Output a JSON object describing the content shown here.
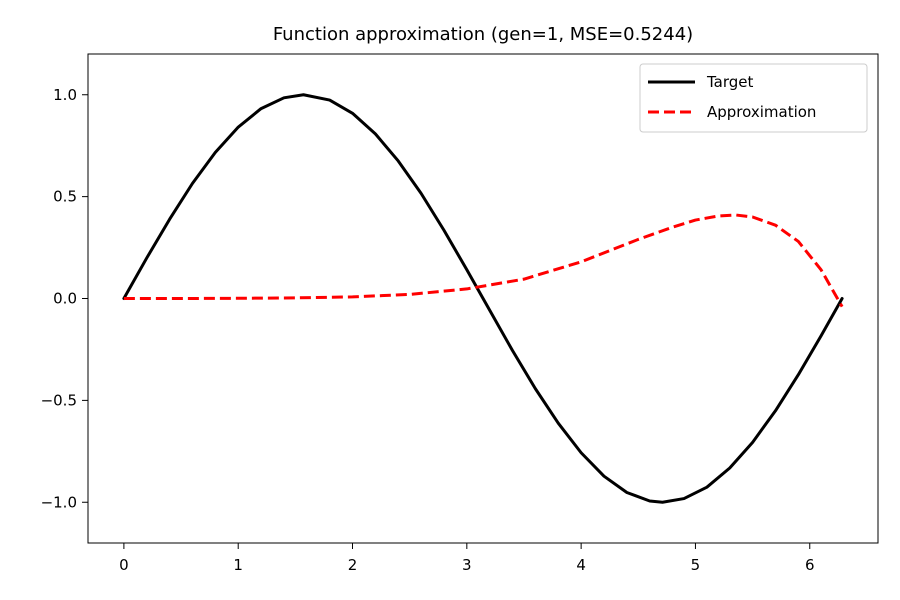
{
  "chart_data": {
    "type": "line",
    "title": "Function approximation (gen=1, MSE=0.5244)",
    "xlabel": "",
    "ylabel": "",
    "xlim": [
      -0.314,
      6.597
    ],
    "ylim": [
      -1.2,
      1.2
    ],
    "xticks": [
      {
        "value": 0,
        "label": "0"
      },
      {
        "value": 1,
        "label": "1"
      },
      {
        "value": 2,
        "label": "2"
      },
      {
        "value": 3,
        "label": "3"
      },
      {
        "value": 4,
        "label": "4"
      },
      {
        "value": 5,
        "label": "5"
      },
      {
        "value": 6,
        "label": "6"
      }
    ],
    "yticks": [
      {
        "value": -1.0,
        "label": "−1.0"
      },
      {
        "value": -0.5,
        "label": "−0.5"
      },
      {
        "value": 0.0,
        "label": "0.0"
      },
      {
        "value": 0.5,
        "label": "0.5"
      },
      {
        "value": 1.0,
        "label": "1.0"
      }
    ],
    "grid": false,
    "legend_position": "top-right",
    "series": [
      {
        "name": "Target",
        "color": "#000000",
        "style": "solid",
        "x": [
          0.0,
          0.2,
          0.4,
          0.6,
          0.8,
          1.0,
          1.2,
          1.4,
          1.571,
          1.8,
          2.0,
          2.2,
          2.4,
          2.6,
          2.8,
          3.0,
          3.142,
          3.4,
          3.6,
          3.8,
          4.0,
          4.2,
          4.4,
          4.6,
          4.712,
          4.9,
          5.1,
          5.3,
          5.5,
          5.7,
          5.9,
          6.1,
          6.283
        ],
        "y": [
          0.0,
          0.199,
          0.389,
          0.565,
          0.717,
          0.841,
          0.932,
          0.985,
          1.0,
          0.974,
          0.909,
          0.808,
          0.675,
          0.516,
          0.335,
          0.141,
          0.0,
          -0.256,
          -0.443,
          -0.612,
          -0.757,
          -0.872,
          -0.952,
          -0.994,
          -1.0,
          -0.982,
          -0.926,
          -0.832,
          -0.706,
          -0.551,
          -0.374,
          -0.182,
          0.0
        ]
      },
      {
        "name": "Approximation",
        "color": "#ff0000",
        "style": "dashed",
        "x": [
          0.0,
          0.5,
          1.0,
          1.5,
          2.0,
          2.5,
          3.0,
          3.5,
          4.0,
          4.5,
          4.8,
          5.0,
          5.2,
          5.35,
          5.5,
          5.7,
          5.9,
          6.1,
          6.283
        ],
        "y": [
          0.0,
          0.0,
          0.001,
          0.003,
          0.008,
          0.02,
          0.047,
          0.095,
          0.18,
          0.29,
          0.35,
          0.385,
          0.405,
          0.41,
          0.4,
          0.36,
          0.28,
          0.14,
          -0.04
        ]
      }
    ]
  }
}
